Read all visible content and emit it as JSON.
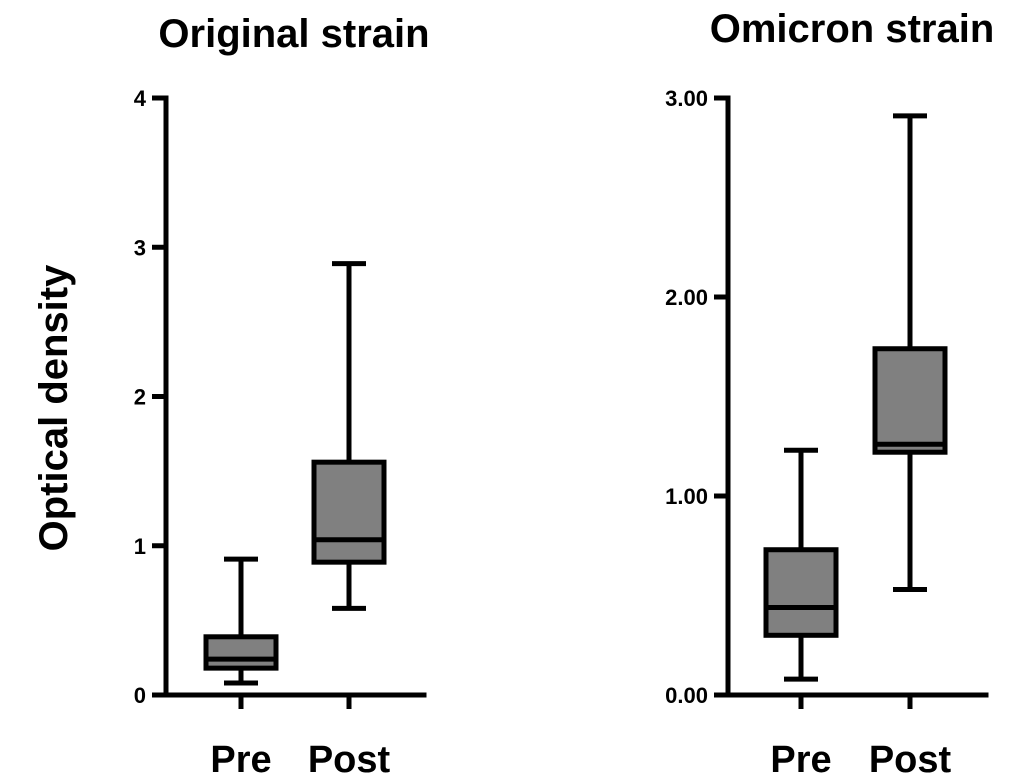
{
  "ylabel": "Optical density",
  "chart_data": [
    {
      "type": "box",
      "title": "Original strain",
      "xlabel": "",
      "ylabel": "Optical density",
      "ylim": [
        0,
        4
      ],
      "yticks": [
        "0",
        "1",
        "2",
        "3",
        "4"
      ],
      "ytick_values": [
        0,
        1,
        2,
        3,
        4
      ],
      "categories": [
        "Pre",
        "Post"
      ],
      "boxes": [
        {
          "category": "Pre",
          "min": 0.08,
          "q1": 0.18,
          "median": 0.24,
          "q3": 0.39,
          "max": 0.91
        },
        {
          "category": "Post",
          "min": 0.58,
          "q1": 0.89,
          "median": 1.04,
          "q3": 1.56,
          "max": 2.89
        }
      ],
      "box_color": "#808080",
      "grid": false
    },
    {
      "type": "box",
      "title": "Omicron strain",
      "xlabel": "",
      "ylabel": "",
      "ylim": [
        0,
        3
      ],
      "yticks": [
        "0.00",
        "1.00",
        "2.00",
        "3.00"
      ],
      "ytick_values": [
        0,
        1,
        2,
        3
      ],
      "categories": [
        "Pre",
        "Post"
      ],
      "boxes": [
        {
          "category": "Pre",
          "min": 0.08,
          "q1": 0.3,
          "median": 0.44,
          "q3": 0.73,
          "max": 1.23
        },
        {
          "category": "Post",
          "min": 0.53,
          "q1": 1.22,
          "median": 1.26,
          "q3": 1.74,
          "max": 2.91
        }
      ],
      "box_color": "#808080",
      "grid": false
    }
  ]
}
